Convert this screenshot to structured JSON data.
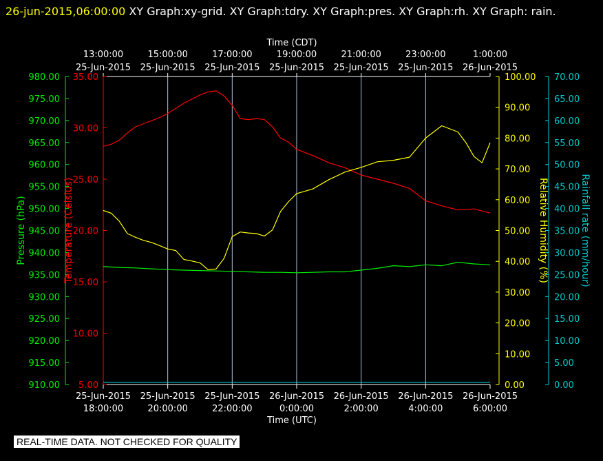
{
  "header": {
    "timestamp": "26-jun-2015,06:00:00",
    "graphs": " XY Graph:xy-grid.  XY Graph:tdry.  XY Graph:pres.  XY Graph:rh.  XY Graph: rain."
  },
  "disclaimer": "REAL-TIME DATA. NOT CHECKED FOR QUALITY",
  "colors": {
    "pressure": "#00ee00",
    "temperature": "#ff0000",
    "humidity": "#ffff00",
    "rain": "#00cccc",
    "axes": "#ffffff",
    "grid": "#b0c4de",
    "background": "#000000"
  },
  "chart_data": {
    "type": "line",
    "x_top": {
      "label": "Time (CDT)",
      "ticks": [
        {
          "time": "13:00:00",
          "date": "25-Jun-2015"
        },
        {
          "time": "15:00:00",
          "date": "25-Jun-2015"
        },
        {
          "time": "17:00:00",
          "date": "25-Jun-2015"
        },
        {
          "time": "19:00:00",
          "date": "25-Jun-2015"
        },
        {
          "time": "21:00:00",
          "date": "25-Jun-2015"
        },
        {
          "time": "23:00:00",
          "date": "25-Jun-2015"
        },
        {
          "time": "1:00:00",
          "date": "26-Jun-2015"
        }
      ]
    },
    "x_bottom": {
      "label": "Time (UTC)",
      "ticks": [
        {
          "date": "25-Jun-2015",
          "time": "18:00:00"
        },
        {
          "date": "25-Jun-2015",
          "time": "20:00:00"
        },
        {
          "date": "25-Jun-2015",
          "time": "22:00:00"
        },
        {
          "date": "26-Jun-2015",
          "time": "0:00:00"
        },
        {
          "date": "26-Jun-2015",
          "time": "2:00:00"
        },
        {
          "date": "26-Jun-2015",
          "time": "4:00:00"
        },
        {
          "date": "26-Jun-2015",
          "time": "6:00:00"
        }
      ]
    },
    "xlim_hours_utc": [
      18,
      30
    ],
    "grid": true,
    "axes": [
      {
        "key": "pressure",
        "label": "Pressure (hPa)",
        "min": 910,
        "max": 980,
        "step": 5,
        "decimals": 2
      },
      {
        "key": "temperature",
        "label": "Temperature (Celsius)",
        "min": 5,
        "max": 35,
        "step": 5,
        "decimals": 2
      },
      {
        "key": "humidity",
        "label": "Relative Humidity (%)",
        "min": 0,
        "max": 100,
        "step": 10,
        "decimals": 2
      },
      {
        "key": "rain",
        "label": "Rainfall rate (mm/hour)",
        "min": 0,
        "max": 70,
        "step": 5,
        "decimals": 2
      }
    ],
    "series": [
      {
        "name": "Pressure (hPa)",
        "axis": "pressure",
        "x": [
          18,
          18.5,
          19,
          19.5,
          20,
          20.5,
          21,
          21.5,
          22,
          22.5,
          23,
          23.5,
          24,
          24.5,
          25,
          25.5,
          26,
          26.5,
          27,
          27.5,
          28,
          28.5,
          29,
          29.5,
          30
        ],
        "y": [
          936.8,
          936.6,
          936.5,
          936.3,
          936.1,
          936.0,
          935.9,
          935.8,
          935.7,
          935.6,
          935.5,
          935.5,
          935.4,
          935.5,
          935.6,
          935.6,
          936.0,
          936.4,
          937.0,
          936.8,
          937.2,
          937.0,
          937.8,
          937.4,
          937.2
        ]
      },
      {
        "name": "Temperature (Celsius)",
        "axis": "temperature",
        "x": [
          18,
          18.25,
          18.5,
          18.75,
          19,
          19.25,
          19.5,
          19.75,
          20,
          20.25,
          20.5,
          20.75,
          21,
          21.25,
          21.5,
          21.75,
          22,
          22.25,
          22.5,
          22.75,
          23,
          23.25,
          23.5,
          23.75,
          24,
          24.5,
          25,
          25.5,
          26,
          26.5,
          27,
          27.5,
          28,
          28.5,
          29,
          29.5,
          30
        ],
        "y": [
          28.2,
          28.4,
          28.8,
          29.5,
          30.1,
          30.4,
          30.7,
          31.0,
          31.4,
          31.9,
          32.4,
          32.8,
          33.2,
          33.5,
          33.6,
          33.1,
          32.2,
          30.9,
          30.8,
          30.9,
          30.8,
          30.1,
          29.0,
          28.6,
          27.9,
          27.3,
          26.6,
          26.1,
          25.4,
          25.0,
          24.6,
          24.1,
          22.9,
          22.4,
          22.0,
          22.1,
          21.7
        ]
      },
      {
        "name": "Relative Humidity (%)",
        "axis": "humidity",
        "x": [
          18,
          18.25,
          18.5,
          18.75,
          19,
          19.25,
          19.5,
          19.75,
          20,
          20.25,
          20.5,
          20.75,
          21,
          21.25,
          21.5,
          21.75,
          22,
          22.25,
          22.5,
          22.75,
          23,
          23.25,
          23.5,
          23.75,
          24,
          24.5,
          25,
          25.5,
          26,
          26.5,
          27,
          27.5,
          28,
          28.5,
          29,
          29.25,
          29.5,
          29.75,
          30
        ],
        "y": [
          56.5,
          55.6,
          53.0,
          49.0,
          47.8,
          46.8,
          46.1,
          45.1,
          44.0,
          43.5,
          40.6,
          40.1,
          39.5,
          37.3,
          37.5,
          41.0,
          48.0,
          49.5,
          49.2,
          49.0,
          48.2,
          50.2,
          56.2,
          59.4,
          62.0,
          63.5,
          66.5,
          69.0,
          70.5,
          72.3,
          72.8,
          73.8,
          80.0,
          84.0,
          82.0,
          78.5,
          74.0,
          72.0,
          78.5
        ]
      },
      {
        "name": "Rainfall rate (mm/hour)",
        "axis": "rain",
        "x": [
          18,
          30
        ],
        "y": [
          0.5,
          0.5
        ]
      }
    ]
  }
}
